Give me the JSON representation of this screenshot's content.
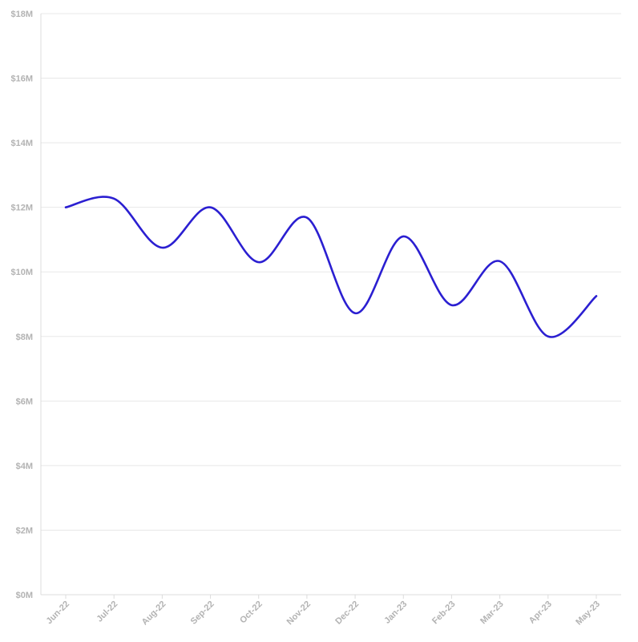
{
  "chart_data": {
    "type": "line",
    "title": "",
    "xlabel": "",
    "ylabel": "",
    "categories": [
      "Jun-22",
      "Jul-22",
      "Aug-22",
      "Sep-22",
      "Oct-22",
      "Nov-22",
      "Dec-22",
      "Jan-23",
      "Feb-23",
      "Mar-23",
      "Apr-23",
      "May-23"
    ],
    "series": [
      {
        "values": [
          12.0,
          12.27,
          10.75,
          12.0,
          10.3,
          11.68,
          8.72,
          11.1,
          8.97,
          10.33,
          8.0,
          9.25
        ],
        "color": "#2b1fd1"
      }
    ],
    "ylim": [
      0,
      18
    ],
    "y_ticks": [
      0,
      2,
      4,
      6,
      8,
      10,
      12,
      14,
      16,
      18
    ],
    "y_tick_labels": [
      "$0M",
      "$2M",
      "$4M",
      "$6M",
      "$8M",
      "$10M",
      "$12M",
      "$14M",
      "$16M",
      "$18M"
    ],
    "y_unit": "millions USD",
    "grid": true,
    "legend": "none",
    "smooth": true
  }
}
